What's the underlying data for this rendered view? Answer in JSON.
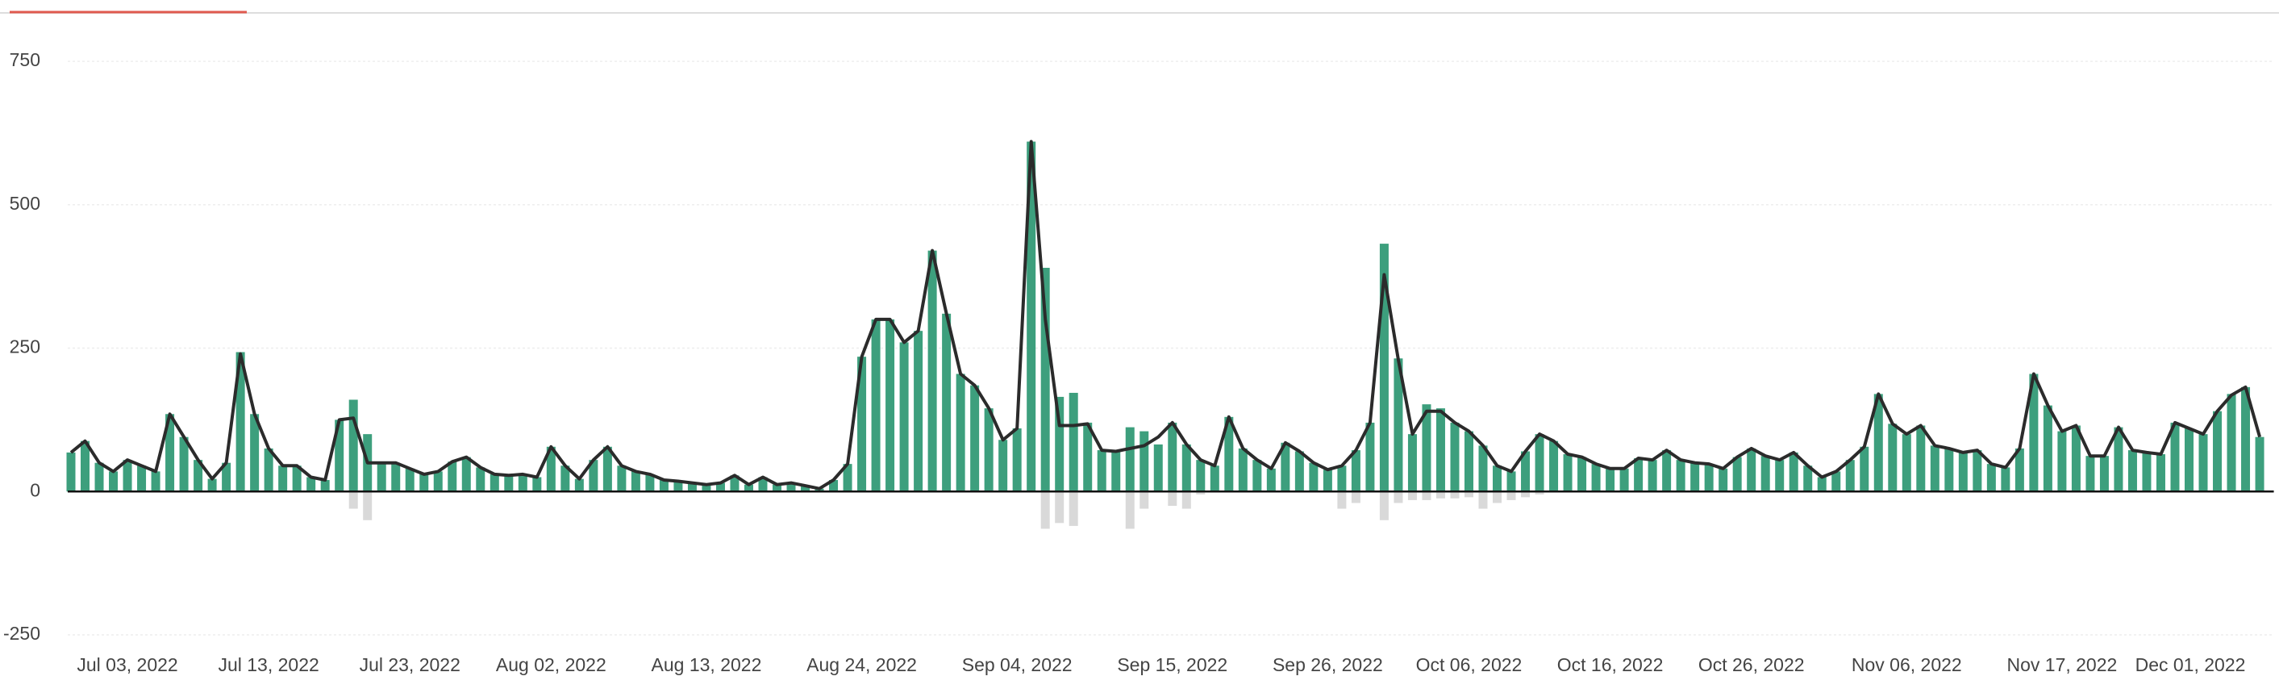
{
  "chart_data": {
    "type": "bar",
    "x": [
      "2022-06-29",
      "2022-06-30",
      "2022-07-01",
      "2022-07-02",
      "2022-07-03",
      "2022-07-04",
      "2022-07-05",
      "2022-07-06",
      "2022-07-07",
      "2022-07-08",
      "2022-07-09",
      "2022-07-10",
      "2022-07-11",
      "2022-07-12",
      "2022-07-13",
      "2022-07-14",
      "2022-07-15",
      "2022-07-16",
      "2022-07-17",
      "2022-07-18",
      "2022-07-19",
      "2022-07-20",
      "2022-07-21",
      "2022-07-22",
      "2022-07-23",
      "2022-07-24",
      "2022-07-25",
      "2022-07-26",
      "2022-07-27",
      "2022-07-28",
      "2022-07-29",
      "2022-07-30",
      "2022-07-31",
      "2022-08-01",
      "2022-08-02",
      "2022-08-03",
      "2022-08-04",
      "2022-08-05",
      "2022-08-06",
      "2022-08-07",
      "2022-08-08",
      "2022-08-09",
      "2022-08-10",
      "2022-08-11",
      "2022-08-12",
      "2022-08-13",
      "2022-08-14",
      "2022-08-15",
      "2022-08-16",
      "2022-08-17",
      "2022-08-18",
      "2022-08-19",
      "2022-08-20",
      "2022-08-21",
      "2022-08-22",
      "2022-08-23",
      "2022-08-24",
      "2022-08-25",
      "2022-08-26",
      "2022-08-27",
      "2022-08-28",
      "2022-08-29",
      "2022-08-30",
      "2022-08-31",
      "2022-09-01",
      "2022-09-02",
      "2022-09-03",
      "2022-09-04",
      "2022-09-05",
      "2022-09-06",
      "2022-09-07",
      "2022-09-08",
      "2022-09-09",
      "2022-09-10",
      "2022-09-11",
      "2022-09-12",
      "2022-09-13",
      "2022-09-14",
      "2022-09-15",
      "2022-09-16",
      "2022-09-17",
      "2022-09-18",
      "2022-09-19",
      "2022-09-20",
      "2022-09-21",
      "2022-09-22",
      "2022-09-23",
      "2022-09-24",
      "2022-09-25",
      "2022-09-26",
      "2022-09-27",
      "2022-09-28",
      "2022-09-29",
      "2022-09-30",
      "2022-10-01",
      "2022-10-02",
      "2022-10-03",
      "2022-10-04",
      "2022-10-05",
      "2022-10-06",
      "2022-10-07",
      "2022-10-08",
      "2022-10-09",
      "2022-10-10",
      "2022-10-11",
      "2022-10-12",
      "2022-10-13",
      "2022-10-14",
      "2022-10-15",
      "2022-10-16",
      "2022-10-17",
      "2022-10-18",
      "2022-10-19",
      "2022-10-20",
      "2022-10-21",
      "2022-10-22",
      "2022-10-23",
      "2022-10-24",
      "2022-10-25",
      "2022-10-26",
      "2022-10-27",
      "2022-10-28",
      "2022-10-29",
      "2022-10-30",
      "2022-10-31",
      "2022-11-01",
      "2022-11-02",
      "2022-11-03",
      "2022-11-04",
      "2022-11-05",
      "2022-11-06",
      "2022-11-07",
      "2022-11-08",
      "2022-11-09",
      "2022-11-10",
      "2022-11-11",
      "2022-11-12",
      "2022-11-13",
      "2022-11-14",
      "2022-11-15",
      "2022-11-16",
      "2022-11-17",
      "2022-11-18",
      "2022-11-19",
      "2022-11-20",
      "2022-11-21",
      "2022-11-22",
      "2022-11-23",
      "2022-11-24",
      "2022-11-25",
      "2022-11-26",
      "2022-11-27",
      "2022-11-28",
      "2022-11-29",
      "2022-11-30",
      "2022-12-01"
    ],
    "series": [
      {
        "type": "bar",
        "color": "#3d9f7d",
        "values": [
          68,
          88,
          50,
          35,
          55,
          45,
          35,
          135,
          95,
          55,
          22,
          50,
          243,
          135,
          75,
          45,
          45,
          25,
          20,
          125,
          160,
          100,
          50,
          50,
          40,
          30,
          35,
          52,
          60,
          42,
          30,
          28,
          30,
          25,
          78,
          45,
          22,
          55,
          78,
          45,
          35,
          30,
          20,
          18,
          15,
          12,
          15,
          28,
          12,
          25,
          12,
          15,
          10,
          5,
          20,
          48,
          235,
          300,
          300,
          260,
          280,
          420,
          310,
          205,
          185,
          145,
          90,
          110,
          610,
          390,
          165,
          172,
          120,
          72,
          70,
          112,
          105,
          82,
          120,
          82,
          55,
          45,
          130,
          75,
          55,
          40,
          85,
          70,
          50,
          38,
          45,
          72,
          120,
          432,
          232,
          100,
          152,
          145,
          120,
          105,
          80,
          45,
          35,
          70,
          100,
          88,
          65,
          60,
          48,
          40,
          40,
          58,
          55,
          72,
          55,
          50,
          48,
          40,
          60,
          75,
          62,
          55,
          68,
          45,
          25,
          35,
          55,
          78,
          170,
          118,
          100,
          115,
          80,
          75,
          68,
          72,
          48,
          42,
          75,
          205,
          150,
          105,
          115,
          62,
          62,
          112,
          72,
          68,
          65,
          120,
          110,
          100,
          140,
          170,
          182,
          95
        ]
      },
      {
        "type": "bar",
        "color": "#d9d9d9",
        "values": [
          0,
          0,
          0,
          0,
          0,
          0,
          0,
          0,
          0,
          0,
          0,
          0,
          0,
          0,
          0,
          0,
          0,
          0,
          0,
          0,
          -30,
          -50,
          0,
          0,
          0,
          0,
          0,
          0,
          0,
          0,
          0,
          0,
          0,
          0,
          0,
          0,
          0,
          0,
          0,
          0,
          0,
          0,
          0,
          0,
          0,
          0,
          0,
          0,
          0,
          0,
          0,
          0,
          0,
          0,
          0,
          0,
          0,
          0,
          0,
          0,
          0,
          0,
          0,
          0,
          0,
          0,
          0,
          0,
          0,
          -65,
          -55,
          -60,
          0,
          0,
          0,
          -65,
          -30,
          0,
          -25,
          -30,
          -5,
          0,
          0,
          0,
          0,
          0,
          0,
          0,
          0,
          0,
          -30,
          -20,
          0,
          -50,
          -20,
          -15,
          -15,
          -12,
          -12,
          -10,
          -30,
          -20,
          -15,
          -10,
          -5,
          0,
          0,
          0,
          0,
          0,
          0,
          0,
          0,
          0,
          0,
          0,
          0,
          0,
          0,
          0,
          0,
          0,
          0,
          0,
          0,
          0,
          0,
          0,
          0,
          0,
          0,
          0,
          0,
          0,
          0,
          0,
          0,
          0,
          0,
          0,
          0,
          0,
          0,
          0,
          0,
          0,
          0,
          0,
          0,
          0,
          0,
          0,
          0,
          0,
          0,
          0
        ]
      },
      {
        "type": "line",
        "color": "#2b2b2b",
        "values": [
          68,
          88,
          50,
          35,
          55,
          45,
          35,
          135,
          95,
          55,
          22,
          50,
          240,
          135,
          75,
          45,
          45,
          25,
          20,
          125,
          128,
          50,
          50,
          50,
          40,
          30,
          35,
          52,
          60,
          42,
          30,
          28,
          30,
          25,
          78,
          45,
          22,
          55,
          78,
          45,
          35,
          30,
          20,
          18,
          15,
          12,
          15,
          28,
          12,
          25,
          12,
          15,
          10,
          5,
          20,
          48,
          235,
          300,
          300,
          260,
          280,
          420,
          310,
          205,
          185,
          145,
          90,
          110,
          610,
          300,
          115,
          115,
          118,
          72,
          70,
          75,
          80,
          95,
          120,
          82,
          55,
          45,
          130,
          75,
          55,
          40,
          85,
          70,
          50,
          38,
          45,
          72,
          120,
          378,
          230,
          100,
          140,
          140,
          120,
          105,
          80,
          45,
          35,
          70,
          100,
          88,
          65,
          60,
          48,
          40,
          40,
          58,
          55,
          72,
          55,
          50,
          48,
          40,
          60,
          75,
          62,
          55,
          68,
          45,
          25,
          35,
          55,
          78,
          170,
          118,
          100,
          115,
          80,
          75,
          68,
          72,
          48,
          42,
          75,
          205,
          150,
          105,
          115,
          62,
          62,
          112,
          72,
          68,
          65,
          120,
          110,
          100,
          140,
          168,
          182,
          95
        ]
      }
    ],
    "ylim": [
      -250,
      750
    ],
    "yticks": [
      -250,
      0,
      250,
      500,
      750
    ],
    "grid": true,
    "xticks": [
      {
        "value": "2022-07-03",
        "label": "Jul 03, 2022"
      },
      {
        "value": "2022-07-13",
        "label": "Jul 13, 2022"
      },
      {
        "value": "2022-07-23",
        "label": "Jul 23, 2022"
      },
      {
        "value": "2022-08-02",
        "label": "Aug 02, 2022"
      },
      {
        "value": "2022-08-13",
        "label": "Aug 13, 2022"
      },
      {
        "value": "2022-08-24",
        "label": "Aug 24, 2022"
      },
      {
        "value": "2022-09-04",
        "label": "Sep 04, 2022"
      },
      {
        "value": "2022-09-15",
        "label": "Sep 15, 2022"
      },
      {
        "value": "2022-09-26",
        "label": "Sep 26, 2022"
      },
      {
        "value": "2022-10-06",
        "label": "Oct 06, 2022"
      },
      {
        "value": "2022-10-16",
        "label": "Oct 16, 2022"
      },
      {
        "value": "2022-10-26",
        "label": "Oct 26, 2022"
      },
      {
        "value": "2022-11-06",
        "label": "Nov 06, 2022"
      },
      {
        "value": "2022-11-17",
        "label": "Nov 17, 2022"
      },
      {
        "value": "2022-12-01",
        "label": "Dec 01, 2022"
      }
    ]
  }
}
